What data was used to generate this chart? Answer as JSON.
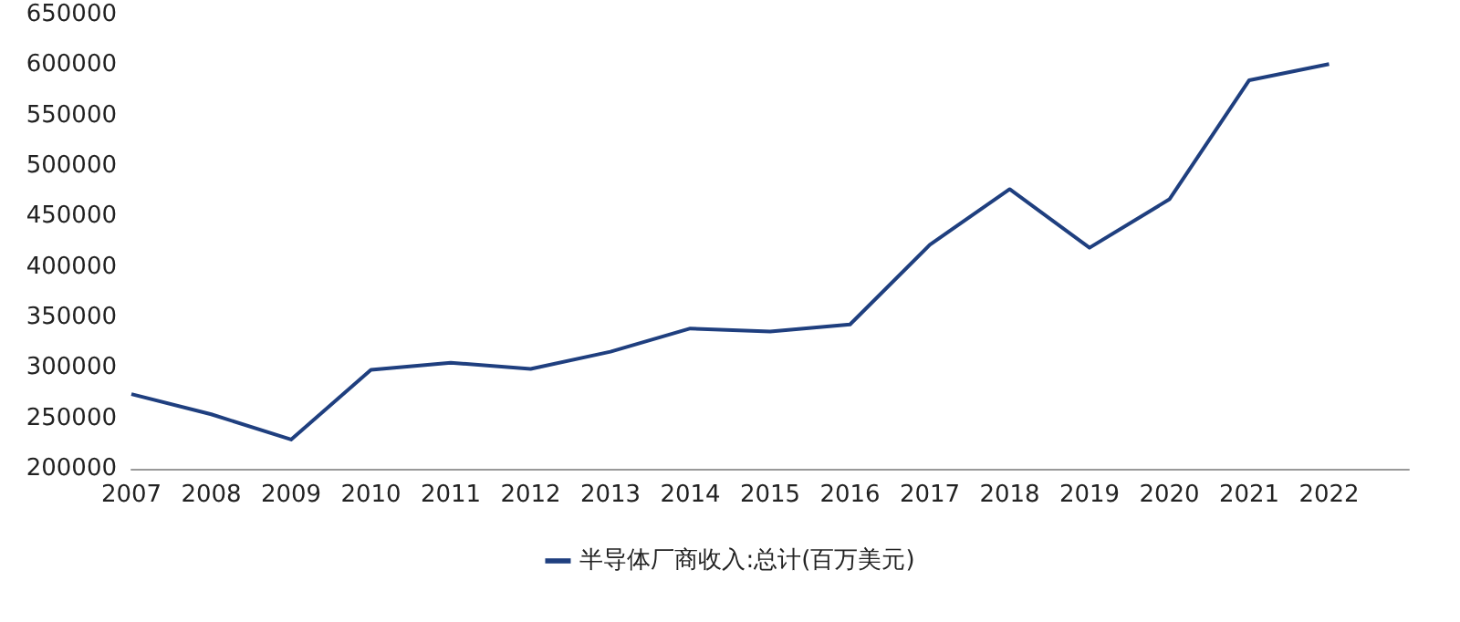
{
  "chart_data": {
    "type": "line",
    "x": [
      2007,
      2008,
      2009,
      2010,
      2011,
      2012,
      2013,
      2014,
      2015,
      2016,
      2017,
      2018,
      2019,
      2020,
      2021,
      2022
    ],
    "series": [
      {
        "name": "半导体厂商收入:总计(百万美元)",
        "color": "#1f3f7f",
        "values": [
          274000,
          254000,
          229000,
          298000,
          305000,
          299000,
          316000,
          339000,
          336000,
          343000,
          422000,
          477000,
          419000,
          467000,
          585000,
          601000
        ]
      }
    ],
    "xlim": [
      2007,
      2023
    ],
    "xticks": [
      2007,
      2008,
      2009,
      2010,
      2011,
      2012,
      2013,
      2014,
      2015,
      2016,
      2017,
      2018,
      2019,
      2020,
      2021,
      2022
    ],
    "ylim": [
      200000,
      650000
    ],
    "yticks": [
      200000,
      250000,
      300000,
      350000,
      400000,
      450000,
      500000,
      550000,
      600000,
      650000
    ],
    "grid": false,
    "legend": "bottom",
    "marker": "none",
    "line_style": "solid"
  }
}
